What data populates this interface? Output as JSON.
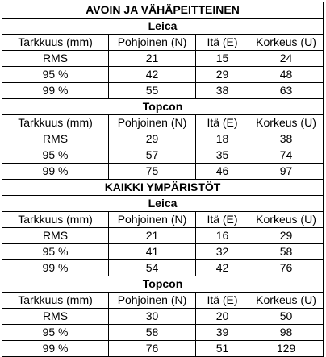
{
  "columns": [
    "Tarkkuus (mm)",
    "Pohjoinen (N)",
    "Itä (E)",
    "Korkeus (U)"
  ],
  "sections": [
    {
      "title": "AVOIN JA VÄHÄPEITTEINEN",
      "devices": [
        {
          "name": "Leica",
          "rows": [
            [
              "RMS",
              "21",
              "15",
              "24"
            ],
            [
              "95 %",
              "42",
              "29",
              "48"
            ],
            [
              "99 %",
              "55",
              "38",
              "63"
            ]
          ]
        },
        {
          "name": "Topcon",
          "rows": [
            [
              "RMS",
              "29",
              "18",
              "38"
            ],
            [
              "95 %",
              "57",
              "35",
              "74"
            ],
            [
              "99 %",
              "75",
              "46",
              "97"
            ]
          ]
        }
      ]
    },
    {
      "title": "KAIKKI YMPÄRISTÖT",
      "devices": [
        {
          "name": "Leica",
          "rows": [
            [
              "RMS",
              "21",
              "16",
              "29"
            ],
            [
              "95 %",
              "41",
              "32",
              "58"
            ],
            [
              "99 %",
              "54",
              "42",
              "76"
            ]
          ]
        },
        {
          "name": "Topcon",
          "rows": [
            [
              "RMS",
              "30",
              "20",
              "50"
            ],
            [
              "95 %",
              "58",
              "39",
              "98"
            ],
            [
              "99 %",
              "76",
              "51",
              "129"
            ]
          ]
        }
      ]
    }
  ]
}
